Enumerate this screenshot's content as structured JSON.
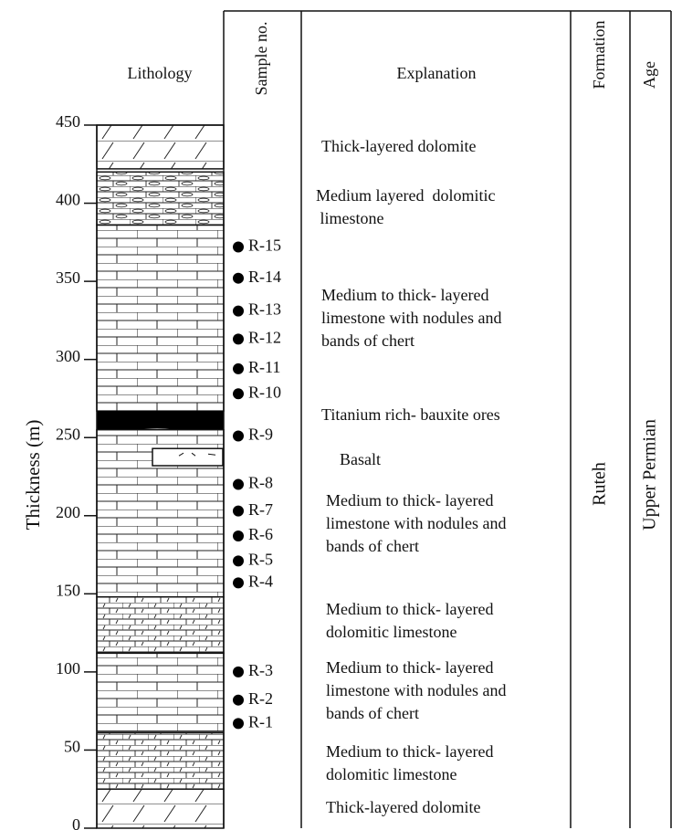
{
  "header": {
    "lithology": "Lithology",
    "sample": "Sample no.",
    "explanation": "Explanation",
    "formation": "Formation",
    "age": "Age"
  },
  "axis": {
    "label": "Thickness (m)",
    "lim": [
      0,
      450
    ],
    "ticks": [
      0,
      50,
      100,
      150,
      200,
      250,
      300,
      350,
      400,
      450
    ]
  },
  "formation": "Ruteh",
  "age": "Upper Permian",
  "layers": [
    {
      "pattern": "dolomite",
      "top": 450,
      "bottom": 422
    },
    {
      "pattern": "oval",
      "top": 420,
      "bottom": 386
    },
    {
      "pattern": "limestone",
      "top": 386,
      "bottom": 267
    },
    {
      "pattern": "bauxite",
      "top": 267,
      "bottom": 255
    },
    {
      "pattern": "limestone",
      "top": 255,
      "bottom": 148
    },
    {
      "pattern": "basalt",
      "top": 243,
      "bottom": 232
    },
    {
      "pattern": "dololime",
      "top": 148,
      "bottom": 112
    },
    {
      "pattern": "limestone",
      "top": 112,
      "bottom": 62
    },
    {
      "pattern": "dololime",
      "top": 61,
      "bottom": 25
    },
    {
      "pattern": "dolomite",
      "top": 25,
      "bottom": 0
    }
  ],
  "samples": [
    {
      "label": "R-15",
      "thickness": 372
    },
    {
      "label": "R-14",
      "thickness": 352
    },
    {
      "label": "R-13",
      "thickness": 331
    },
    {
      "label": "R-12",
      "thickness": 313
    },
    {
      "label": "R-11",
      "thickness": 294
    },
    {
      "label": "R-10",
      "thickness": 278
    },
    {
      "label": "R-9",
      "thickness": 251
    },
    {
      "label": "R-8",
      "thickness": 220
    },
    {
      "label": "R-7",
      "thickness": 203
    },
    {
      "label": "R-6",
      "thickness": 187
    },
    {
      "label": "R-5",
      "thickness": 171
    },
    {
      "label": "R-4",
      "thickness": 157
    },
    {
      "label": "R-3",
      "thickness": 100
    },
    {
      "label": "R-2",
      "thickness": 82
    },
    {
      "label": "R-1",
      "thickness": 67
    }
  ],
  "explanations": [
    [
      "Thick-layered dolomite"
    ],
    [
      "Medium layered  dolomitic",
      " limestone"
    ],
    [
      "Medium to thick- layered",
      "limestone with nodules and",
      "bands of chert"
    ],
    [
      "Titanium rich- bauxite ores"
    ],
    [
      "Basalt"
    ],
    [
      "Medium to thick- layered",
      "limestone with nodules and",
      "bands of chert"
    ],
    [
      "Medium to thick- layered",
      "dolomitic limestone"
    ],
    [
      "Medium to thick- layered",
      "limestone with nodules and",
      "bands of chert"
    ],
    [
      "Medium to thick- layered",
      "dolomitic limestone"
    ],
    [
      "Thick-layered dolomite"
    ]
  ]
}
